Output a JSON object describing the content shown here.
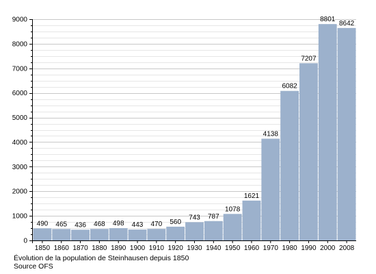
{
  "chart_data": {
    "type": "bar",
    "categories": [
      "1850",
      "1860",
      "1870",
      "1880",
      "1890",
      "1900",
      "1910",
      "1920",
      "1930",
      "1940",
      "1950",
      "1960",
      "1970",
      "1980",
      "1990",
      "2000",
      "2008"
    ],
    "values": [
      490,
      465,
      436,
      468,
      498,
      443,
      470,
      560,
      743,
      787,
      1078,
      1621,
      4138,
      6082,
      7207,
      8801,
      8642
    ],
    "y_ticks": [
      "0",
      "1000",
      "2000",
      "3000",
      "4000",
      "5000",
      "6000",
      "7000",
      "8000",
      "9000"
    ],
    "ylim": [
      0,
      9000
    ],
    "grid": true,
    "bar_color": "#9cb1cc",
    "grid_color": "#d9d9d9"
  },
  "caption": {
    "line1": "Évolution de la population de Steinhausen depuis 1850",
    "line2": "Source OFS"
  }
}
